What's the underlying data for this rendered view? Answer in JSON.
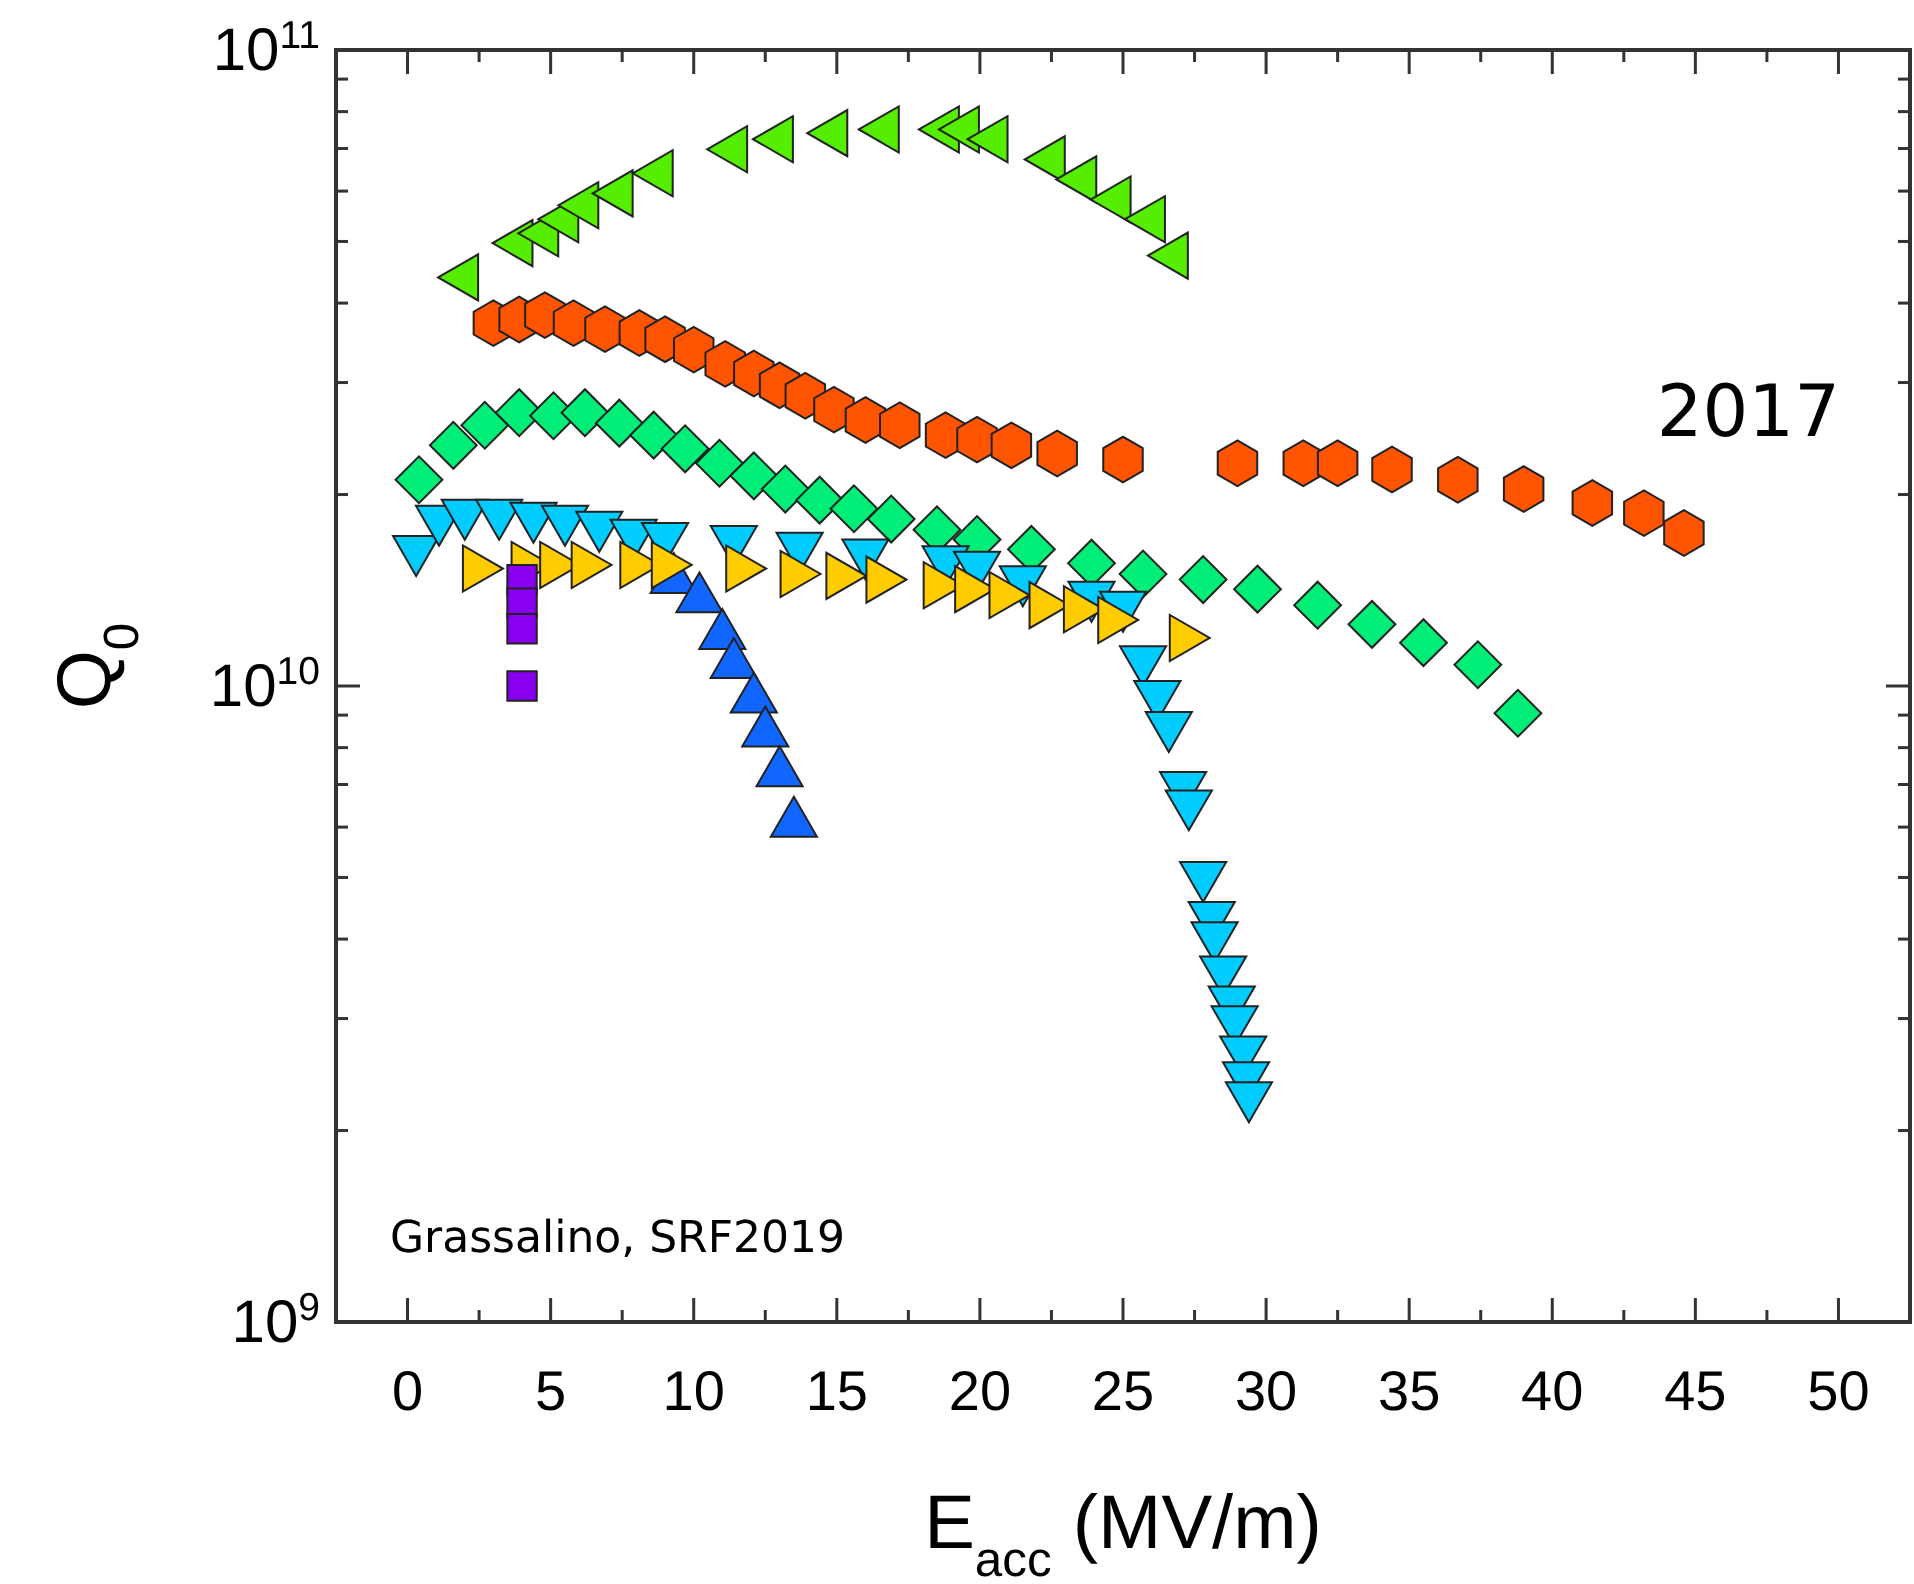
{
  "chart_data": {
    "type": "scatter",
    "xlabel": "E$_{acc}$ (MV/m)",
    "ylabel": "Q$_{0}$",
    "log": "y",
    "grid": false,
    "xlim": [
      -2.5,
      52.5
    ],
    "ylim": [
      1000000000.0,
      100000000000.0
    ],
    "xticks": [
      {
        "value": 0,
        "label": "0"
      },
      {
        "value": 2.5,
        "label": null
      },
      {
        "value": 5,
        "label": "5"
      },
      {
        "value": 7.5,
        "label": null
      },
      {
        "value": 10,
        "label": "10"
      },
      {
        "value": 12.5,
        "label": null
      },
      {
        "value": 15,
        "label": "15"
      },
      {
        "value": 17.5,
        "label": null
      },
      {
        "value": 20,
        "label": "20"
      },
      {
        "value": 22.5,
        "label": null
      },
      {
        "value": 25,
        "label": "25"
      },
      {
        "value": 27.5,
        "label": null
      },
      {
        "value": 30,
        "label": "30"
      },
      {
        "value": 32.5,
        "label": null
      },
      {
        "value": 35,
        "label": "35"
      },
      {
        "value": 37.5,
        "label": null
      },
      {
        "value": 40,
        "label": "40"
      },
      {
        "value": 42.5,
        "label": null
      },
      {
        "value": 45,
        "label": "45"
      },
      {
        "value": 47.5,
        "label": null
      },
      {
        "value": 50,
        "label": "50"
      }
    ],
    "yticks": [
      {
        "value": 1000000000.0,
        "label": "10$^{9}$"
      },
      {
        "value": 2000000000.0,
        "label": null
      },
      {
        "value": 3000000000.0,
        "label": null
      },
      {
        "value": 4000000000.0,
        "label": null
      },
      {
        "value": 5000000000.0,
        "label": null
      },
      {
        "value": 6000000000.0,
        "label": null
      },
      {
        "value": 7000000000.0,
        "label": null
      },
      {
        "value": 8000000000.0,
        "label": null
      },
      {
        "value": 9000000000.0,
        "label": null
      },
      {
        "value": 10000000000.0,
        "label": "10$^{10}$"
      },
      {
        "value": 20000000000.0,
        "label": null
      },
      {
        "value": 30000000000.0,
        "label": null
      },
      {
        "value": 40000000000.0,
        "label": null
      },
      {
        "value": 50000000000.0,
        "label": null
      },
      {
        "value": 60000000000.0,
        "label": null
      },
      {
        "value": 70000000000.0,
        "label": null
      },
      {
        "value": 80000000000.0,
        "label": null
      },
      {
        "value": 90000000000.0,
        "label": null
      },
      {
        "value": 100000000000.0,
        "label": "10$^{11}$"
      }
    ],
    "annotations": [
      "2017",
      "Grassalino, SRF2019"
    ],
    "series": [
      {
        "color": "#55ee00",
        "marker": "triangle-left",
        "x": [
          2.0,
          3.9,
          4.8,
          5.5,
          6.2,
          7.4,
          8.8,
          11.4,
          13.0,
          14.9,
          16.7,
          18.8,
          19.5,
          20.5,
          22.5,
          23.6,
          24.8,
          26.0,
          26.8
        ],
        "values": [
          43900000000.0,
          49700000000.0,
          51500000000.0,
          54200000000.0,
          57000000000.0,
          59500000000.0,
          64000000000.0,
          69800000000.0,
          72400000000.0,
          74000000000.0,
          75000000000.0,
          75000000000.0,
          75000000000.0,
          72400000000.0,
          67300000000.0,
          62600000000.0,
          58200000000.0,
          54200000000.0,
          47500000000.0
        ]
      },
      {
        "color": "#ff5500",
        "x": [
          3.0,
          3.9,
          4.8,
          5.8,
          6.9,
          8.1,
          9.0,
          10.0,
          11.1,
          12.1,
          13.0,
          13.9,
          14.9,
          16.0,
          17.2,
          18.8,
          19.9,
          21.1,
          22.7,
          25.0,
          29.0,
          31.3,
          32.5,
          34.4,
          36.7,
          39.0,
          41.4,
          43.2,
          44.6
        ],
        "values": [
          37200000000.0,
          37700000000.0,
          38300000000.0,
          37200000000.0,
          36400000000.0,
          35900000000.0,
          35100000000.0,
          33800000000.0,
          32100000000.0,
          31000000000.0,
          29700000000.0,
          28600000000.0,
          27200000000.0,
          26200000000.0,
          25700000000.0,
          24800000000.0,
          24400000000.0,
          23900000000.0,
          23200000000.0,
          22700000000.0,
          22400000000.0,
          22400000000.0,
          22400000000.0,
          21900000000.0,
          21100000000.0,
          20400000000.0,
          19400000000.0,
          18700000000.0,
          17400000000.0
        ]
      },
      {
        "color": "#00ee77",
        "marker": "diamond",
        "x": [
          0.4,
          1.6,
          2.7,
          3.9,
          5.1,
          6.2,
          7.4,
          8.6,
          9.7,
          10.9,
          12.1,
          13.2,
          14.4,
          15.6,
          16.9,
          18.5,
          19.9,
          21.8,
          23.9,
          25.7,
          27.8,
          29.7,
          31.8,
          33.7,
          35.5,
          37.4,
          38.8
        ],
        "values": [
          21100000000.0,
          23900000000.0,
          25700000000.0,
          26900000000.0,
          26600000000.0,
          26900000000.0,
          25900000000.0,
          24800000000.0,
          23600000000.0,
          22400000000.0,
          21400000000.0,
          20400000000.0,
          19600000000.0,
          19000000000.0,
          18300000000.0,
          17600000000.0,
          17000000000.0,
          16400000000.0,
          15600000000.0,
          15000000000.0,
          14700000000.0,
          14200000000.0,
          13400000000.0,
          12500000000.0,
          11700000000.0,
          10800000000.0,
          9060000000.0
        ]
      },
      {
        "color": "#1166ff",
        "marker": "triangle-up",
        "x": [
          9.3,
          10.2,
          11.0,
          11.4,
          12.1,
          12.5,
          13.0,
          13.5
        ],
        "values": [
          14700000000.0,
          13700000000.0,
          12000000000.0,
          10800000000.0,
          9530000000.0,
          8430000000.0,
          7300000000.0,
          6080000000.0
        ]
      },
      {
        "color": "#00ccff",
        "marker": "triangle-down",
        "x": [
          0.3,
          1.1,
          2.0,
          3.2,
          4.4,
          5.5,
          6.7,
          7.9,
          9.0,
          11.4,
          13.7,
          16.0,
          18.8,
          19.9,
          21.5,
          23.9,
          25.0,
          25.7,
          26.2,
          26.6,
          27.1,
          27.3,
          27.8,
          28.1,
          28.2,
          28.5,
          28.8,
          28.9,
          29.2,
          29.3,
          29.4
        ],
        "values": [
          16400000000.0,
          18300000000.0,
          18700000000.0,
          18700000000.0,
          18500000000.0,
          18300000000.0,
          17900000000.0,
          17400000000.0,
          17200000000.0,
          17000000000.0,
          16600000000.0,
          16200000000.0,
          15800000000.0,
          15500000000.0,
          14700000000.0,
          13900000000.0,
          13400000000.0,
          11000000000.0,
          9700000000.0,
          8670000000.0,
          6980000000.0,
          6530000000.0,
          5040000000.0,
          4360000000.0,
          4050000000.0,
          3580000000.0,
          3210000000.0,
          2990000000.0,
          2680000000.0,
          2440000000.0,
          2270000000.0
        ]
      },
      {
        "color": "#ffcc00",
        "marker": "triangle-right",
        "x": [
          2.4,
          4.1,
          5.1,
          6.2,
          7.9,
          9.0,
          11.6,
          13.5,
          15.1,
          16.5,
          18.5,
          19.6,
          20.8,
          22.2,
          23.4,
          24.6,
          27.1
        ],
        "values": [
          15300000000.0,
          15500000000.0,
          15500000000.0,
          15500000000.0,
          15500000000.0,
          15500000000.0,
          15300000000.0,
          15000000000.0,
          14900000000.0,
          14700000000.0,
          14400000000.0,
          14200000000.0,
          13900000000.0,
          13400000000.0,
          13200000000.0,
          12700000000.0,
          11900000000.0
        ]
      },
      {
        "color": "#8800ee",
        "marker": "square",
        "x": [
          4.0,
          4.0,
          4.0,
          4.0
        ],
        "values": [
          14700000000.0,
          13500000000.0,
          12300000000.0,
          10000000000.0
        ]
      }
    ]
  }
}
